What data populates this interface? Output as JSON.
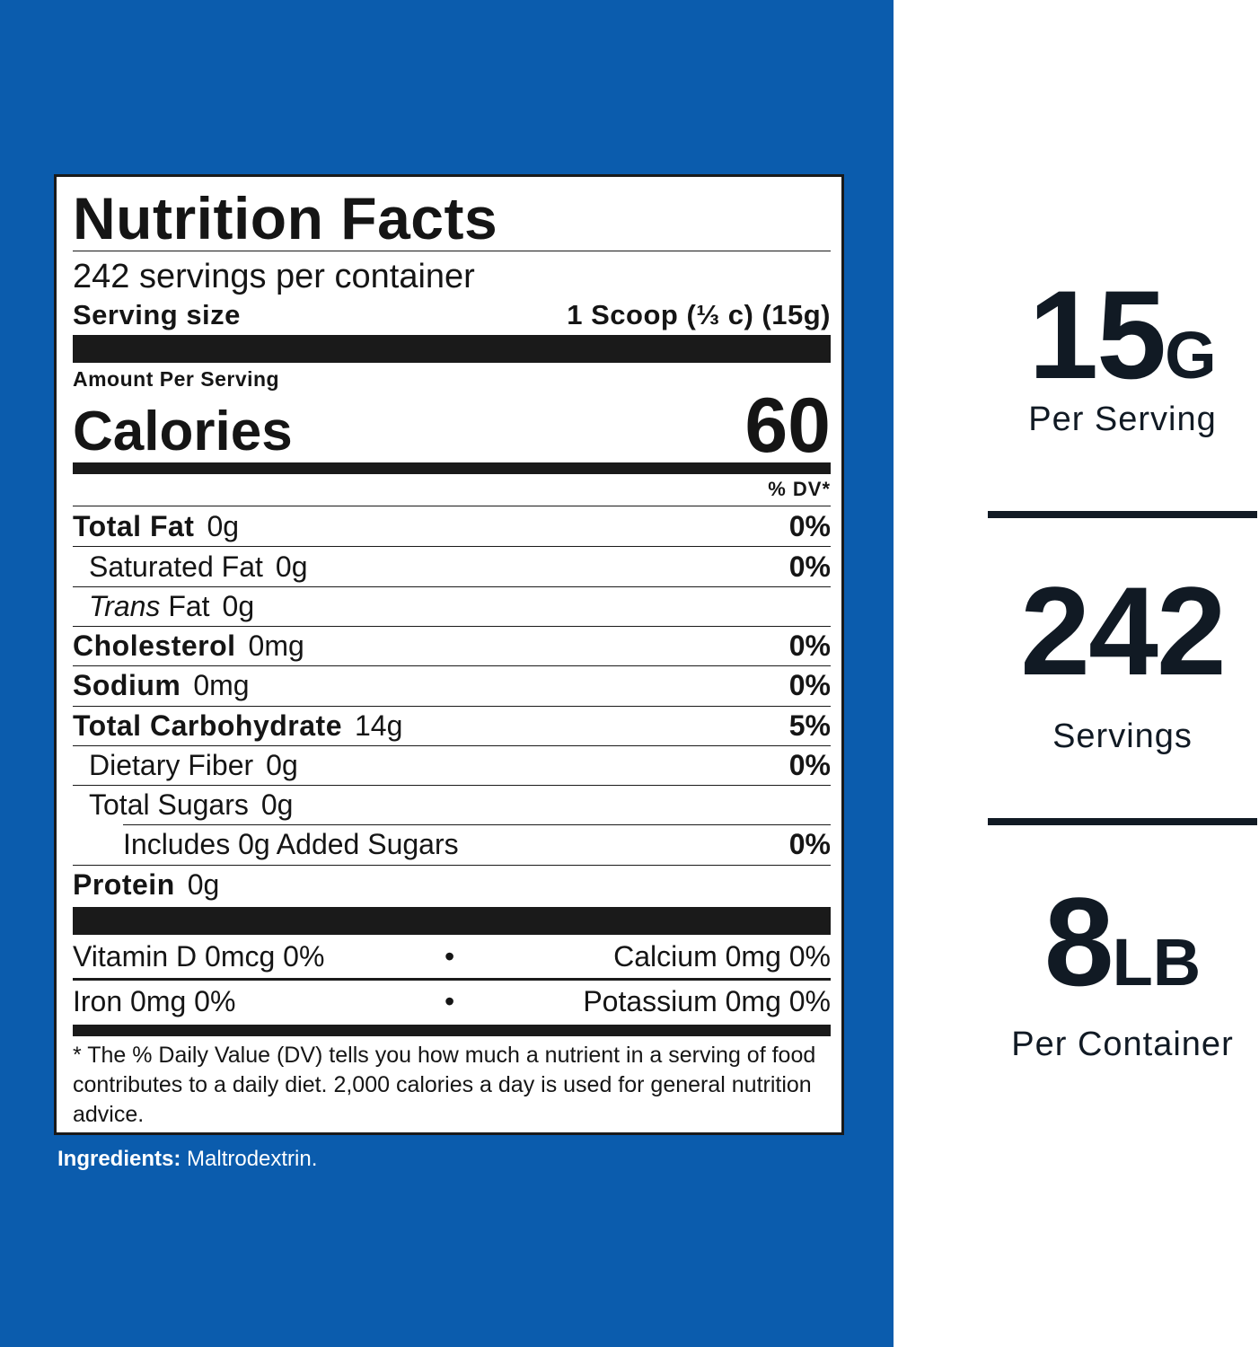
{
  "label": {
    "title": "Nutrition Facts",
    "servings_per_container": "242 servings per container",
    "serving_size_label": "Serving size",
    "serving_size_value": "1 Scoop (⅓ c) (15g)",
    "amount_per_serving": "Amount Per Serving",
    "calories_label": "Calories",
    "calories_value": "60",
    "dv_header": "% DV*",
    "nutrients": [
      {
        "name": "Total Fat",
        "amount": "0g",
        "dv": "0%"
      },
      {
        "name": "Saturated Fat",
        "amount": "0g",
        "dv": "0%"
      },
      {
        "name_italic": "Trans",
        "name": "Fat",
        "amount": "0g",
        "dv": ""
      },
      {
        "name": "Cholesterol",
        "amount": "0mg",
        "dv": "0%"
      },
      {
        "name": "Sodium",
        "amount": "0mg",
        "dv": "0%"
      },
      {
        "name": "Total Carbohydrate",
        "amount": "14g",
        "dv": "5%"
      },
      {
        "name": "Dietary Fiber",
        "amount": "0g",
        "dv": "0%"
      },
      {
        "name": "Total Sugars",
        "amount": "0g",
        "dv": ""
      },
      {
        "name": "Includes 0g Added Sugars",
        "amount": "",
        "dv": "0%"
      },
      {
        "name": "Protein",
        "amount": "0g",
        "dv": ""
      }
    ],
    "vitamins": [
      {
        "left": "Vitamin D  0mcg  0%",
        "bullet": "•",
        "right": "Calcium  0mg  0%"
      },
      {
        "left": "Iron  0mg  0%",
        "bullet": "•",
        "right": "Potassium  0mg  0%"
      }
    ],
    "footnote": "* The % Daily Value (DV) tells you how much a nutrient in a serving of food contributes to a daily diet. 2,000 calories a day is used for general nutrition advice."
  },
  "ingredients": {
    "label": "Ingredients:",
    "value": "Maltrodextrin."
  },
  "stats": [
    {
      "number": "15",
      "unit": "G",
      "label": "Per Serving"
    },
    {
      "number": "242",
      "unit": "",
      "label": "Servings"
    },
    {
      "number": "8",
      "unit": "LB",
      "label": "Per Container"
    }
  ],
  "colors": {
    "panel_blue": "#0b5cad",
    "label_text": "#151515",
    "stat_text": "#111a24"
  }
}
